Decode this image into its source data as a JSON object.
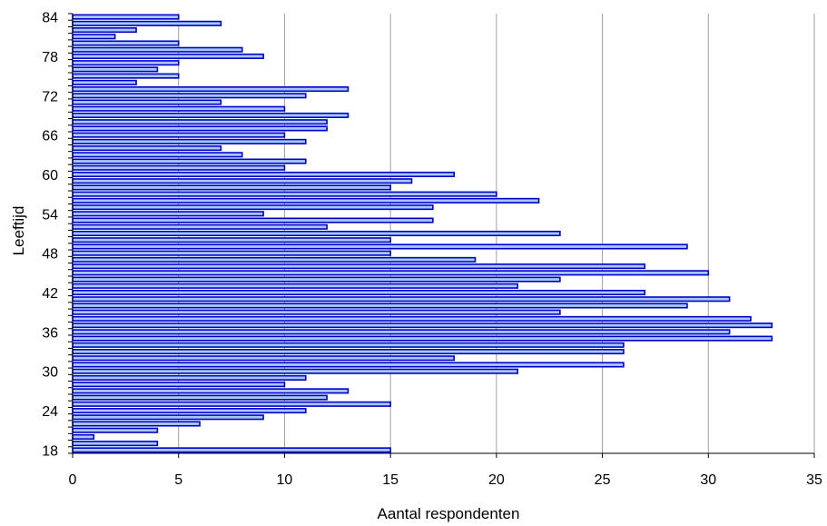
{
  "chart_data": {
    "type": "bar",
    "orientation": "horizontal",
    "title": "",
    "xlabel": "Aantal respondenten",
    "ylabel": "Leeftijd",
    "xlim": [
      0,
      35
    ],
    "x_ticks": [
      "0",
      "5",
      "10",
      "15",
      "20",
      "25",
      "30",
      "35"
    ],
    "y_tick_labels": [
      "18",
      "24",
      "30",
      "36",
      "42",
      "48",
      "54",
      "60",
      "66",
      "72",
      "78",
      "84"
    ],
    "grid": "vertical",
    "legend": "none",
    "colors": {
      "bar_fill": "#a6c8f2",
      "bar_border": "#0000cc",
      "grid": "#a0a0a0",
      "axis": "#000000"
    },
    "categories": [
      18,
      19,
      20,
      21,
      22,
      23,
      24,
      25,
      26,
      27,
      28,
      29,
      30,
      31,
      32,
      33,
      34,
      35,
      36,
      37,
      38,
      39,
      40,
      41,
      42,
      43,
      44,
      45,
      46,
      47,
      48,
      49,
      50,
      51,
      52,
      53,
      54,
      55,
      56,
      57,
      58,
      59,
      60,
      61,
      62,
      63,
      64,
      65,
      66,
      67,
      68,
      69,
      70,
      71,
      72,
      73,
      74,
      75,
      76,
      77,
      78,
      79,
      80,
      81,
      82,
      83,
      84
    ],
    "values": [
      15,
      4,
      1,
      4,
      6,
      9,
      11,
      15,
      12,
      13,
      10,
      11,
      21,
      26,
      18,
      26,
      26,
      33,
      31,
      33,
      32,
      23,
      29,
      31,
      27,
      21,
      23,
      30,
      27,
      19,
      15,
      29,
      15,
      23,
      12,
      17,
      9,
      17,
      22,
      20,
      15,
      16,
      18,
      10,
      11,
      8,
      7,
      11,
      10,
      12,
      12,
      13,
      10,
      7,
      11,
      13,
      3,
      5,
      4,
      5,
      9,
      8,
      5,
      2,
      3,
      7,
      5
    ]
  }
}
